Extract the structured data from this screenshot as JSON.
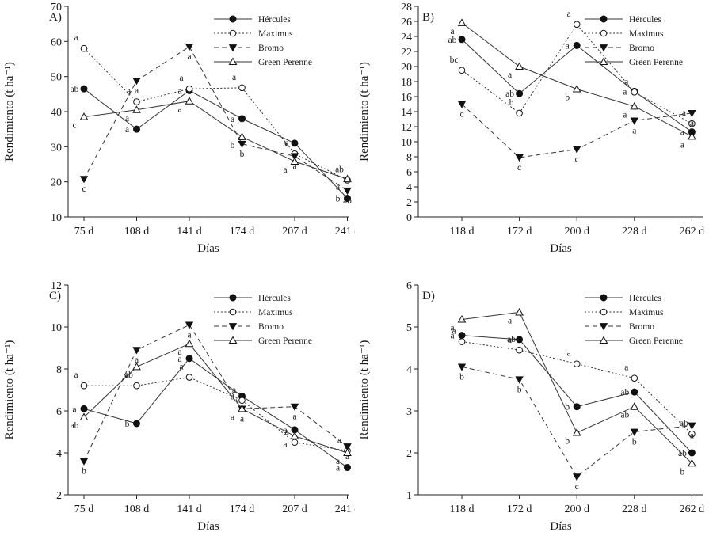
{
  "chart_data": [
    {
      "type": "line",
      "panel_label": "A)",
      "xlabel": "Días",
      "ylabel": "Rendimiento (t ha⁻¹)",
      "categories": [
        "75 d",
        "108 d",
        "141 d",
        "174 d",
        "207 d",
        "241 d"
      ],
      "ylim": [
        10,
        70
      ],
      "yticks": [
        10,
        20,
        30,
        40,
        50,
        60,
        70
      ],
      "legend_position": "top-right",
      "series": [
        {
          "name": "Hércules",
          "values": [
            46.5,
            35,
            46,
            38,
            31,
            15.3
          ],
          "letters": [
            "ab",
            "a",
            "a",
            "a",
            "a",
            "b"
          ]
        },
        {
          "name": "Maximus",
          "values": [
            58,
            42.8,
            46.5,
            46.8,
            28,
            20.5
          ],
          "letters": [
            "a",
            "a",
            "a",
            "a",
            "a",
            "ab"
          ]
        },
        {
          "name": "Bromo",
          "values": [
            20.8,
            48.8,
            58.5,
            30.8,
            27.3,
            17.5
          ],
          "letters": [
            "c",
            "a",
            "a",
            "b",
            "a",
            "ab"
          ]
        },
        {
          "name": "Green Perenne",
          "values": [
            38.5,
            40.5,
            43,
            32.8,
            25.8,
            20.8
          ],
          "letters": [
            "c",
            "a",
            "a",
            "b",
            "a",
            "a"
          ]
        }
      ]
    },
    {
      "type": "line",
      "panel_label": "B)",
      "xlabel": "Días",
      "ylabel": "Rendimiento (t ha⁻¹)",
      "categories": [
        "118 d",
        "172 d",
        "200 d",
        "228 d",
        "262 d"
      ],
      "ylim": [
        0,
        28
      ],
      "yticks": [
        0,
        2,
        4,
        6,
        8,
        10,
        12,
        14,
        16,
        18,
        20,
        22,
        24,
        26,
        28
      ],
      "legend_position": "top-right",
      "series": [
        {
          "name": "Hércules",
          "values": [
            23.6,
            16.4,
            22.8,
            16.7,
            11.3
          ],
          "letters": [
            "ab",
            "ab",
            "a",
            "a",
            "a"
          ]
        },
        {
          "name": "Maximus",
          "values": [
            19.5,
            13.8,
            25.6,
            16.6,
            12.4
          ],
          "letters": [
            "bc",
            "b",
            "a",
            "a",
            "a"
          ]
        },
        {
          "name": "Bromo",
          "values": [
            15,
            7.9,
            9,
            12.8,
            13.8
          ],
          "letters": [
            "c",
            "c",
            "c",
            "a",
            "a"
          ]
        },
        {
          "name": "Green Perenne",
          "values": [
            25.8,
            20,
            17,
            14.7,
            10.7
          ],
          "letters": [
            "a",
            "a",
            "b",
            "a",
            "a"
          ]
        }
      ]
    },
    {
      "type": "line",
      "panel_label": "C)",
      "xlabel": "Días",
      "ylabel": "Rendimiento (t ha⁻¹)",
      "categories": [
        "75 d",
        "108 d",
        "141 d",
        "174 d",
        "207 d",
        "241 d"
      ],
      "ylim": [
        2,
        12
      ],
      "yticks": [
        2,
        4,
        6,
        8,
        10,
        12
      ],
      "legend_position": "top-right",
      "series": [
        {
          "name": "Hércules",
          "values": [
            6.1,
            5.4,
            8.5,
            6.7,
            5.1,
            3.3
          ],
          "letters": [
            "a",
            "b",
            "a",
            "a",
            "a",
            "a"
          ]
        },
        {
          "name": "Maximus",
          "values": [
            7.2,
            7.2,
            7.6,
            6.5,
            4.5,
            4.1
          ],
          "letters": [
            "a",
            "ab",
            "a",
            "a",
            "a",
            "a"
          ]
        },
        {
          "name": "Bromo",
          "values": [
            3.6,
            8.9,
            10.1,
            6.1,
            6.2,
            4.3
          ],
          "letters": [
            "b",
            "a",
            "a",
            "a",
            "a",
            "a"
          ]
        },
        {
          "name": "Green Perenne",
          "values": [
            5.7,
            8.1,
            9.2,
            6.1,
            4.8,
            4
          ],
          "letters": [
            "ab",
            "a",
            "a",
            "a",
            "a",
            "a"
          ]
        }
      ]
    },
    {
      "type": "line",
      "panel_label": "D)",
      "xlabel": "Días",
      "ylabel": "Rendimiento (t ha⁻¹)",
      "categories": [
        "118 d",
        "172 d",
        "200 d",
        "228 d",
        "262 d"
      ],
      "ylim": [
        1,
        6
      ],
      "yticks": [
        1,
        2,
        3,
        4,
        5,
        6
      ],
      "legend_position": "top-right",
      "series": [
        {
          "name": "Hércules",
          "values": [
            4.8,
            4.7,
            3.1,
            3.45,
            2
          ],
          "letters": [
            "a",
            "a",
            "b",
            "ab",
            "ab"
          ]
        },
        {
          "name": "Maximus",
          "values": [
            4.65,
            4.45,
            4.12,
            3.78,
            2.45
          ],
          "letters": [
            "a",
            "ab",
            "a",
            "a",
            "ab"
          ]
        },
        {
          "name": "Bromo",
          "values": [
            4.05,
            3.75,
            1.43,
            2.5,
            2.65
          ],
          "letters": [
            "b",
            "b",
            "c",
            "b",
            "a"
          ]
        },
        {
          "name": "Green Perenne",
          "values": [
            5.18,
            5.35,
            2.48,
            3.1,
            1.75
          ],
          "letters": [
            "a",
            "a",
            "b",
            "ab",
            "b"
          ]
        }
      ]
    }
  ]
}
